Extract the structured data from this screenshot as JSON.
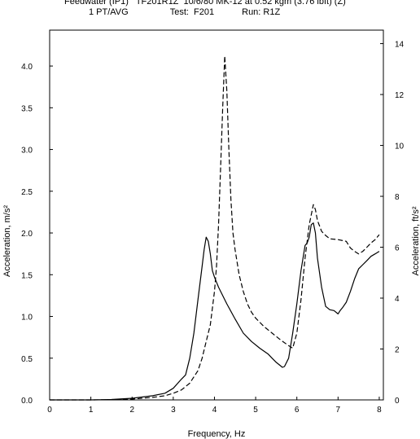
{
  "header": {
    "line1": "Feedwater (IP1)   TF201R1Z  10/6/80 MK-12 at 0.52 kgm (3.76 lbft) (Z)",
    "line2_left": "1 PT/AVG",
    "line2_mid": "Test:  F201",
    "line2_right": "Run: R1Z"
  },
  "chart_data": {
    "type": "line",
    "xlabel": "Frequency, Hz",
    "ylabel_left": "Acceleration,  m/s²",
    "ylabel_right": "Acceleration, ft/s²",
    "xlim": [
      0,
      8.1
    ],
    "ylim_left": [
      0,
      4.43
    ],
    "ylim_right": [
      0,
      14.53
    ],
    "x_ticks": [
      "0",
      "1",
      "2",
      "3",
      "4",
      "5",
      "6",
      "7",
      "8"
    ],
    "y_ticks_left": [
      "0.0",
      "0.5",
      "1.0",
      "1.5",
      "2.0",
      "2.5",
      "3.0",
      "3.5",
      "4.0"
    ],
    "y_ticks_right": [
      "0",
      "2",
      "4",
      "6",
      "8",
      "10",
      "12",
      "14"
    ],
    "grid": false,
    "series": [
      {
        "style": "solid",
        "points": [
          [
            0,
            0
          ],
          [
            1,
            0
          ],
          [
            1.5,
            0.005
          ],
          [
            2,
            0.02
          ],
          [
            2.5,
            0.05
          ],
          [
            2.8,
            0.08
          ],
          [
            3.0,
            0.14
          ],
          [
            3.2,
            0.25
          ],
          [
            3.3,
            0.3
          ],
          [
            3.4,
            0.5
          ],
          [
            3.5,
            0.8
          ],
          [
            3.6,
            1.2
          ],
          [
            3.7,
            1.6
          ],
          [
            3.75,
            1.8
          ],
          [
            3.8,
            1.95
          ],
          [
            3.85,
            1.9
          ],
          [
            3.9,
            1.75
          ],
          [
            3.95,
            1.55
          ],
          [
            4.0,
            1.47
          ],
          [
            4.1,
            1.35
          ],
          [
            4.3,
            1.15
          ],
          [
            4.5,
            0.97
          ],
          [
            4.7,
            0.8
          ],
          [
            4.9,
            0.7
          ],
          [
            5.1,
            0.62
          ],
          [
            5.3,
            0.55
          ],
          [
            5.4,
            0.5
          ],
          [
            5.5,
            0.45
          ],
          [
            5.6,
            0.41
          ],
          [
            5.65,
            0.39
          ],
          [
            5.7,
            0.4
          ],
          [
            5.8,
            0.5
          ],
          [
            5.9,
            0.8
          ],
          [
            6.0,
            1.15
          ],
          [
            6.1,
            1.55
          ],
          [
            6.2,
            1.85
          ],
          [
            6.25,
            1.88
          ],
          [
            6.3,
            1.95
          ],
          [
            6.35,
            2.1
          ],
          [
            6.4,
            2.12
          ],
          [
            6.45,
            2.0
          ],
          [
            6.5,
            1.7
          ],
          [
            6.6,
            1.35
          ],
          [
            6.7,
            1.12
          ],
          [
            6.8,
            1.08
          ],
          [
            6.9,
            1.07
          ],
          [
            7.0,
            1.03
          ],
          [
            7.05,
            1.07
          ],
          [
            7.1,
            1.1
          ],
          [
            7.2,
            1.17
          ],
          [
            7.3,
            1.3
          ],
          [
            7.4,
            1.45
          ],
          [
            7.5,
            1.57
          ],
          [
            7.6,
            1.62
          ],
          [
            7.7,
            1.67
          ],
          [
            7.8,
            1.72
          ],
          [
            7.9,
            1.75
          ],
          [
            8.0,
            1.78
          ]
        ]
      },
      {
        "style": "dashed",
        "points": [
          [
            0,
            0
          ],
          [
            1,
            0
          ],
          [
            1.5,
            0.002
          ],
          [
            2,
            0.01
          ],
          [
            2.5,
            0.03
          ],
          [
            2.8,
            0.05
          ],
          [
            3.0,
            0.08
          ],
          [
            3.2,
            0.12
          ],
          [
            3.4,
            0.2
          ],
          [
            3.6,
            0.35
          ],
          [
            3.7,
            0.5
          ],
          [
            3.8,
            0.7
          ],
          [
            3.9,
            0.9
          ],
          [
            4.0,
            1.3
          ],
          [
            4.05,
            1.6
          ],
          [
            4.1,
            2.1
          ],
          [
            4.15,
            2.8
          ],
          [
            4.2,
            3.5
          ],
          [
            4.25,
            4.12
          ],
          [
            4.3,
            3.7
          ],
          [
            4.35,
            3.0
          ],
          [
            4.4,
            2.4
          ],
          [
            4.45,
            2.0
          ],
          [
            4.5,
            1.8
          ],
          [
            4.6,
            1.5
          ],
          [
            4.7,
            1.3
          ],
          [
            4.8,
            1.15
          ],
          [
            4.9,
            1.05
          ],
          [
            5.0,
            0.98
          ],
          [
            5.2,
            0.88
          ],
          [
            5.4,
            0.8
          ],
          [
            5.6,
            0.72
          ],
          [
            5.8,
            0.65
          ],
          [
            5.9,
            0.62
          ],
          [
            6.0,
            0.8
          ],
          [
            6.1,
            1.2
          ],
          [
            6.2,
            1.7
          ],
          [
            6.3,
            2.1
          ],
          [
            6.4,
            2.34
          ],
          [
            6.45,
            2.28
          ],
          [
            6.5,
            2.15
          ],
          [
            6.6,
            2.02
          ],
          [
            6.7,
            1.97
          ],
          [
            6.8,
            1.93
          ],
          [
            7.0,
            1.92
          ],
          [
            7.2,
            1.9
          ],
          [
            7.3,
            1.82
          ],
          [
            7.4,
            1.78
          ],
          [
            7.5,
            1.75
          ],
          [
            7.6,
            1.78
          ],
          [
            7.7,
            1.83
          ],
          [
            7.8,
            1.88
          ],
          [
            7.9,
            1.92
          ],
          [
            8.0,
            1.98
          ]
        ]
      }
    ]
  }
}
